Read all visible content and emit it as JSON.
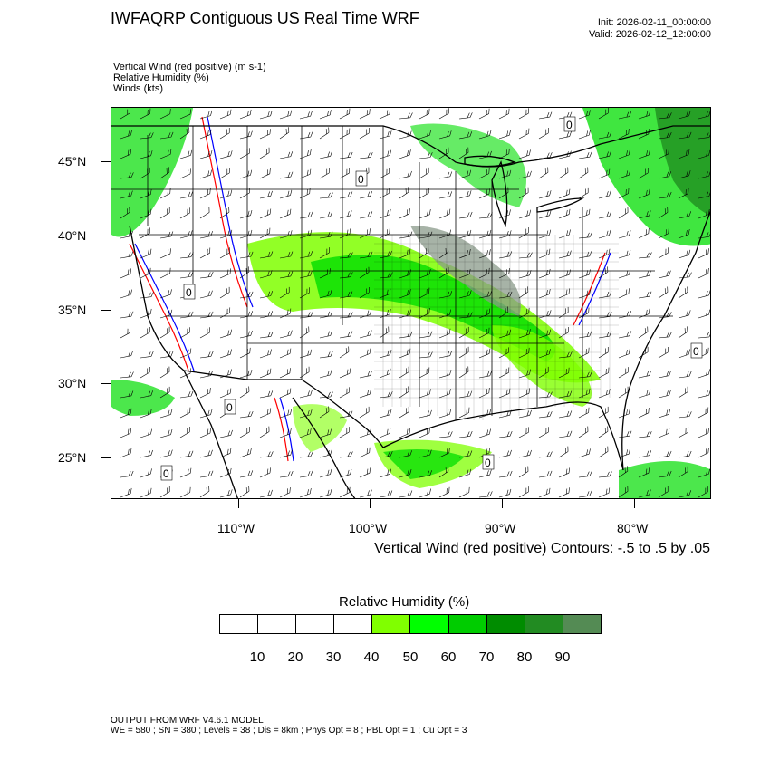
{
  "header": {
    "title": "IWFAQRP Contiguous US Real Time WRF",
    "init": "Init: 2026-02-11_00:00:00",
    "valid": "Valid: 2026-02-12_12:00:00"
  },
  "fields": [
    "Vertical Wind (red positive)   (m s-1)",
    "Relative Humidity   (%)",
    "Winds   (kts)"
  ],
  "map": {
    "lat_labels": [
      "45°N",
      "40°N",
      "35°N",
      "30°N",
      "25°N"
    ],
    "lon_labels": [
      "110°W",
      "100°W",
      "90°W",
      "80°W"
    ],
    "contour_value_label": "0",
    "colors": {
      "rh_light": "#7fff00",
      "rh_mid": "#00dd00",
      "rh_dark": "#1f8f1f",
      "rh_gray": "#8a9a8a",
      "updraft": "#ff0000",
      "downdraft": "#0000ff",
      "borders": "#000000"
    }
  },
  "contour_note": "Vertical Wind (red positive) Contours: -.5 to .5 by .05",
  "legend": {
    "title": "Relative Humidity  (%)",
    "colors": [
      "#ffffff",
      "#ffffff",
      "#ffffff",
      "#ffffff",
      "#80ff00",
      "#00ff00",
      "#00cc00",
      "#008c00",
      "#228b22",
      "#548b54"
    ],
    "ticks": [
      "10",
      "20",
      "30",
      "40",
      "50",
      "60",
      "70",
      "80",
      "90"
    ]
  },
  "footer": {
    "line1": "OUTPUT FROM WRF V4.6.1 MODEL",
    "line2": "WE = 580 ; SN = 380 ; Levels = 38 ; Dis = 8km ; Phys Opt = 8 ; PBL Opt = 1 ; Cu Opt = 3"
  }
}
